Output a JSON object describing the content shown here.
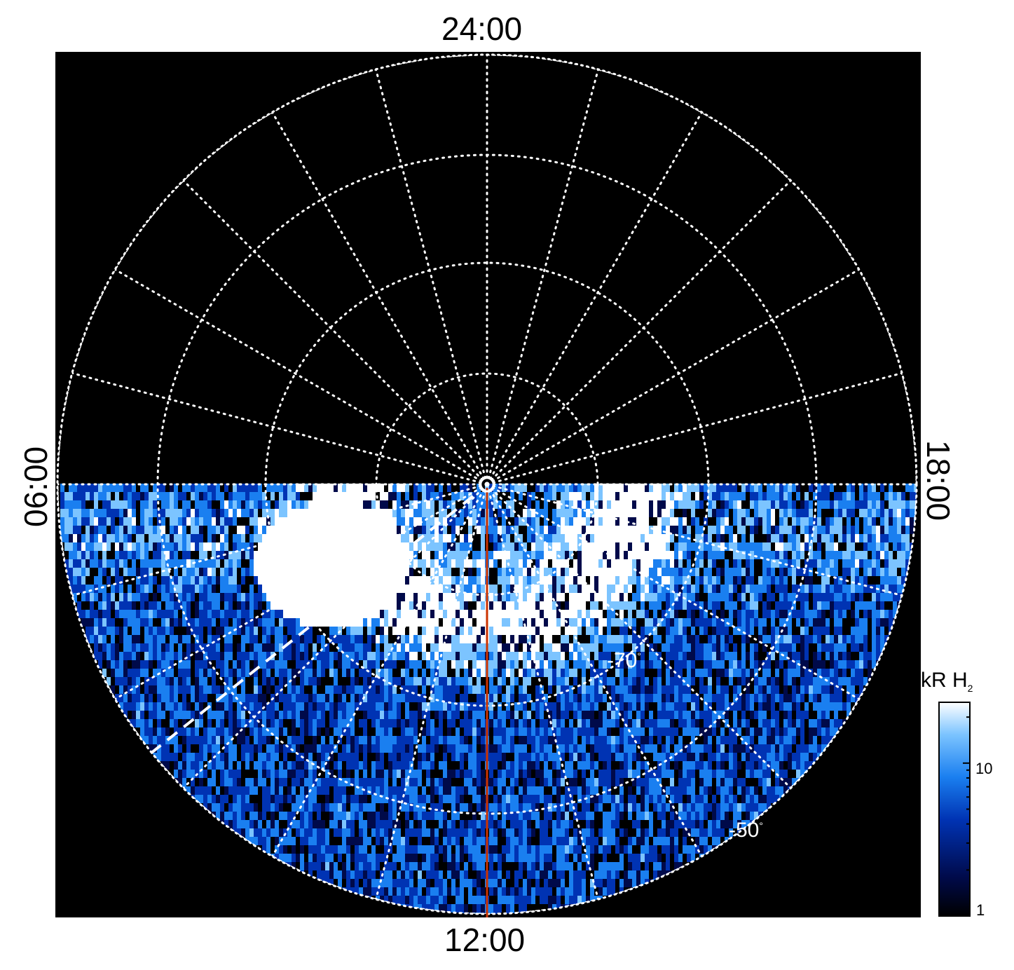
{
  "axis_labels": {
    "top": "24:00",
    "bottom": "12:00",
    "left": "06:00",
    "right": "18:00"
  },
  "colorbar": {
    "title": "kR H",
    "title_subscript": "2",
    "ticks": [
      "10",
      "1"
    ],
    "scale": "log",
    "range": [
      1,
      25
    ],
    "colors": [
      "#000000",
      "#000a4a",
      "#0033b3",
      "#1a7ff0",
      "#7cc4ff",
      "#ffffff"
    ]
  },
  "latitude_labels": [
    {
      "text": "-70",
      "unit": "°"
    },
    {
      "text": "-50",
      "unit": "°"
    }
  ],
  "colors": {
    "background": "#000000",
    "grid": "#ffffff",
    "meridian": "#cc3300",
    "aurora": "#1a7ff0"
  }
}
